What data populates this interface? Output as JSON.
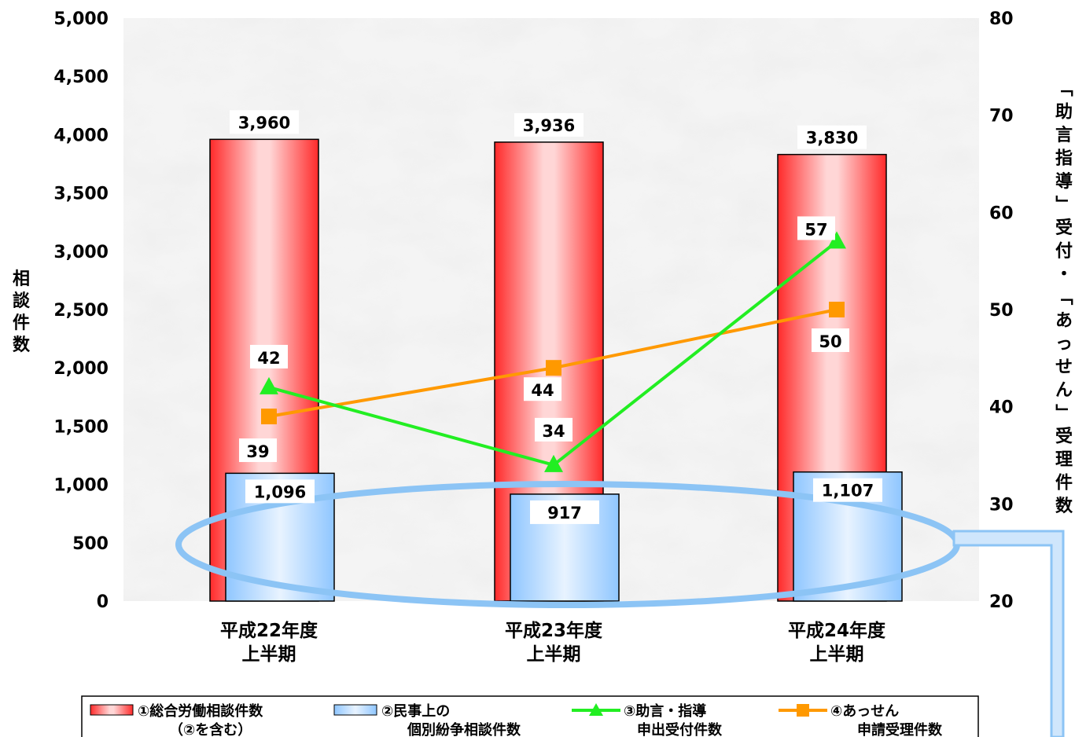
{
  "chart_data": {
    "type": "bar",
    "categories": [
      [
        "平成22年度",
        "上半期"
      ],
      [
        "平成23年度",
        "上半期"
      ],
      [
        "平成24年度",
        "上半期"
      ]
    ],
    "y_left": {
      "title": "相談件数",
      "min": 0,
      "max": 5000,
      "step": 500,
      "ticks": [
        "0",
        "500",
        "1,000",
        "1,500",
        "2,000",
        "2,500",
        "3,000",
        "3,500",
        "4,000",
        "4,500",
        "5,000"
      ]
    },
    "y_right": {
      "title": "「助言指導」受付・「あっせん」受理件数",
      "min": 20,
      "max": 80,
      "step": 10,
      "ticks": [
        "20",
        "30",
        "40",
        "50",
        "60",
        "70",
        "80"
      ]
    },
    "series": [
      {
        "name": "①総合労働相談件数",
        "name_sub": "（②を含む）",
        "kind": "bar",
        "axis": "left",
        "values": [
          3960,
          3936,
          3830
        ],
        "labels": [
          "3,960",
          "3,936",
          "3,830"
        ],
        "color": "#ff2a2a"
      },
      {
        "name": "②民事上の",
        "name_sub": "個別紛争相談件数",
        "kind": "bar",
        "axis": "left",
        "values": [
          1096,
          917,
          1107
        ],
        "labels": [
          "1,096",
          "917",
          "1,107"
        ],
        "color": "#7fbfff"
      },
      {
        "name": "③助言・指導",
        "name_sub": "申出受付件数",
        "kind": "line",
        "axis": "right",
        "values": [
          42,
          34,
          57
        ],
        "labels": [
          "42",
          "34",
          "57"
        ],
        "color": "#22ee22"
      },
      {
        "name": "④あっせん",
        "name_sub": "申請受理件数",
        "kind": "line",
        "axis": "right",
        "values": [
          39,
          44,
          50
        ],
        "labels": [
          "39",
          "44",
          "50"
        ],
        "color": "#ff9900"
      }
    ],
    "grid": false,
    "legend": "bottom"
  }
}
